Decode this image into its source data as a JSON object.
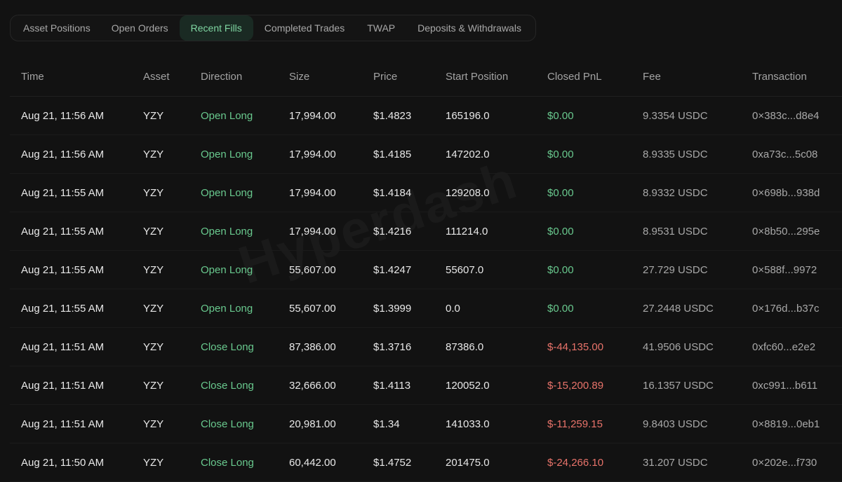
{
  "tabs": [
    {
      "label": "Asset Positions",
      "active": false
    },
    {
      "label": "Open Orders",
      "active": false
    },
    {
      "label": "Recent Fills",
      "active": true
    },
    {
      "label": "Completed Trades",
      "active": false
    },
    {
      "label": "TWAP",
      "active": false
    },
    {
      "label": "Deposits & Withdrawals",
      "active": false
    }
  ],
  "watermark": "Hyperdash",
  "table": {
    "headers": [
      "Time",
      "Asset",
      "Direction",
      "Size",
      "Price",
      "Start Position",
      "Closed PnL",
      "Fee",
      "Transaction"
    ],
    "rows": [
      {
        "time": "Aug 21, 11:56 AM",
        "asset": "YZY",
        "direction": "Open Long",
        "size": "17,994.00",
        "price": "$1.4823",
        "start": "165196.0",
        "pnl": "$0.00",
        "pnl_sign": "zero",
        "fee": "9.3354 USDC",
        "tx": "0×383c...d8e4"
      },
      {
        "time": "Aug 21, 11:56 AM",
        "asset": "YZY",
        "direction": "Open Long",
        "size": "17,994.00",
        "price": "$1.4185",
        "start": "147202.0",
        "pnl": "$0.00",
        "pnl_sign": "zero",
        "fee": "8.9335 USDC",
        "tx": "0xa73c...5c08"
      },
      {
        "time": "Aug 21, 11:55 AM",
        "asset": "YZY",
        "direction": "Open Long",
        "size": "17,994.00",
        "price": "$1.4184",
        "start": "129208.0",
        "pnl": "$0.00",
        "pnl_sign": "zero",
        "fee": "8.9332 USDC",
        "tx": "0×698b...938d"
      },
      {
        "time": "Aug 21, 11:55 AM",
        "asset": "YZY",
        "direction": "Open Long",
        "size": "17,994.00",
        "price": "$1.4216",
        "start": "111214.0",
        "pnl": "$0.00",
        "pnl_sign": "zero",
        "fee": "8.9531 USDC",
        "tx": "0×8b50...295e"
      },
      {
        "time": "Aug 21, 11:55 AM",
        "asset": "YZY",
        "direction": "Open Long",
        "size": "55,607.00",
        "price": "$1.4247",
        "start": "55607.0",
        "pnl": "$0.00",
        "pnl_sign": "zero",
        "fee": "27.729 USDC",
        "tx": "0×588f...9972"
      },
      {
        "time": "Aug 21, 11:55 AM",
        "asset": "YZY",
        "direction": "Open Long",
        "size": "55,607.00",
        "price": "$1.3999",
        "start": "0.0",
        "pnl": "$0.00",
        "pnl_sign": "zero",
        "fee": "27.2448 USDC",
        "tx": "0×176d...b37c"
      },
      {
        "time": "Aug 21, 11:51 AM",
        "asset": "YZY",
        "direction": "Close Long",
        "size": "87,386.00",
        "price": "$1.3716",
        "start": "87386.0",
        "pnl": "$-44,135.00",
        "pnl_sign": "negative",
        "fee": "41.9506 USDC",
        "tx": "0xfc60...e2e2"
      },
      {
        "time": "Aug 21, 11:51 AM",
        "asset": "YZY",
        "direction": "Close Long",
        "size": "32,666.00",
        "price": "$1.4113",
        "start": "120052.0",
        "pnl": "$-15,200.89",
        "pnl_sign": "negative",
        "fee": "16.1357 USDC",
        "tx": "0xc991...b611"
      },
      {
        "time": "Aug 21, 11:51 AM",
        "asset": "YZY",
        "direction": "Close Long",
        "size": "20,981.00",
        "price": "$1.34",
        "start": "141033.0",
        "pnl": "$-11,259.15",
        "pnl_sign": "negative",
        "fee": "9.8403 USDC",
        "tx": "0×8819...0eb1"
      },
      {
        "time": "Aug 21, 11:50 AM",
        "asset": "YZY",
        "direction": "Close Long",
        "size": "60,442.00",
        "price": "$1.4752",
        "start": "201475.0",
        "pnl": "$-24,266.10",
        "pnl_sign": "negative",
        "fee": "31.207 USDC",
        "tx": "0×202e...f730"
      }
    ]
  },
  "colors": {
    "background": "#121212",
    "positive": "#69c98e",
    "negative": "#e8736a",
    "active_tab_bg": "#1a2a23",
    "active_tab_text": "#7fd6a2"
  }
}
